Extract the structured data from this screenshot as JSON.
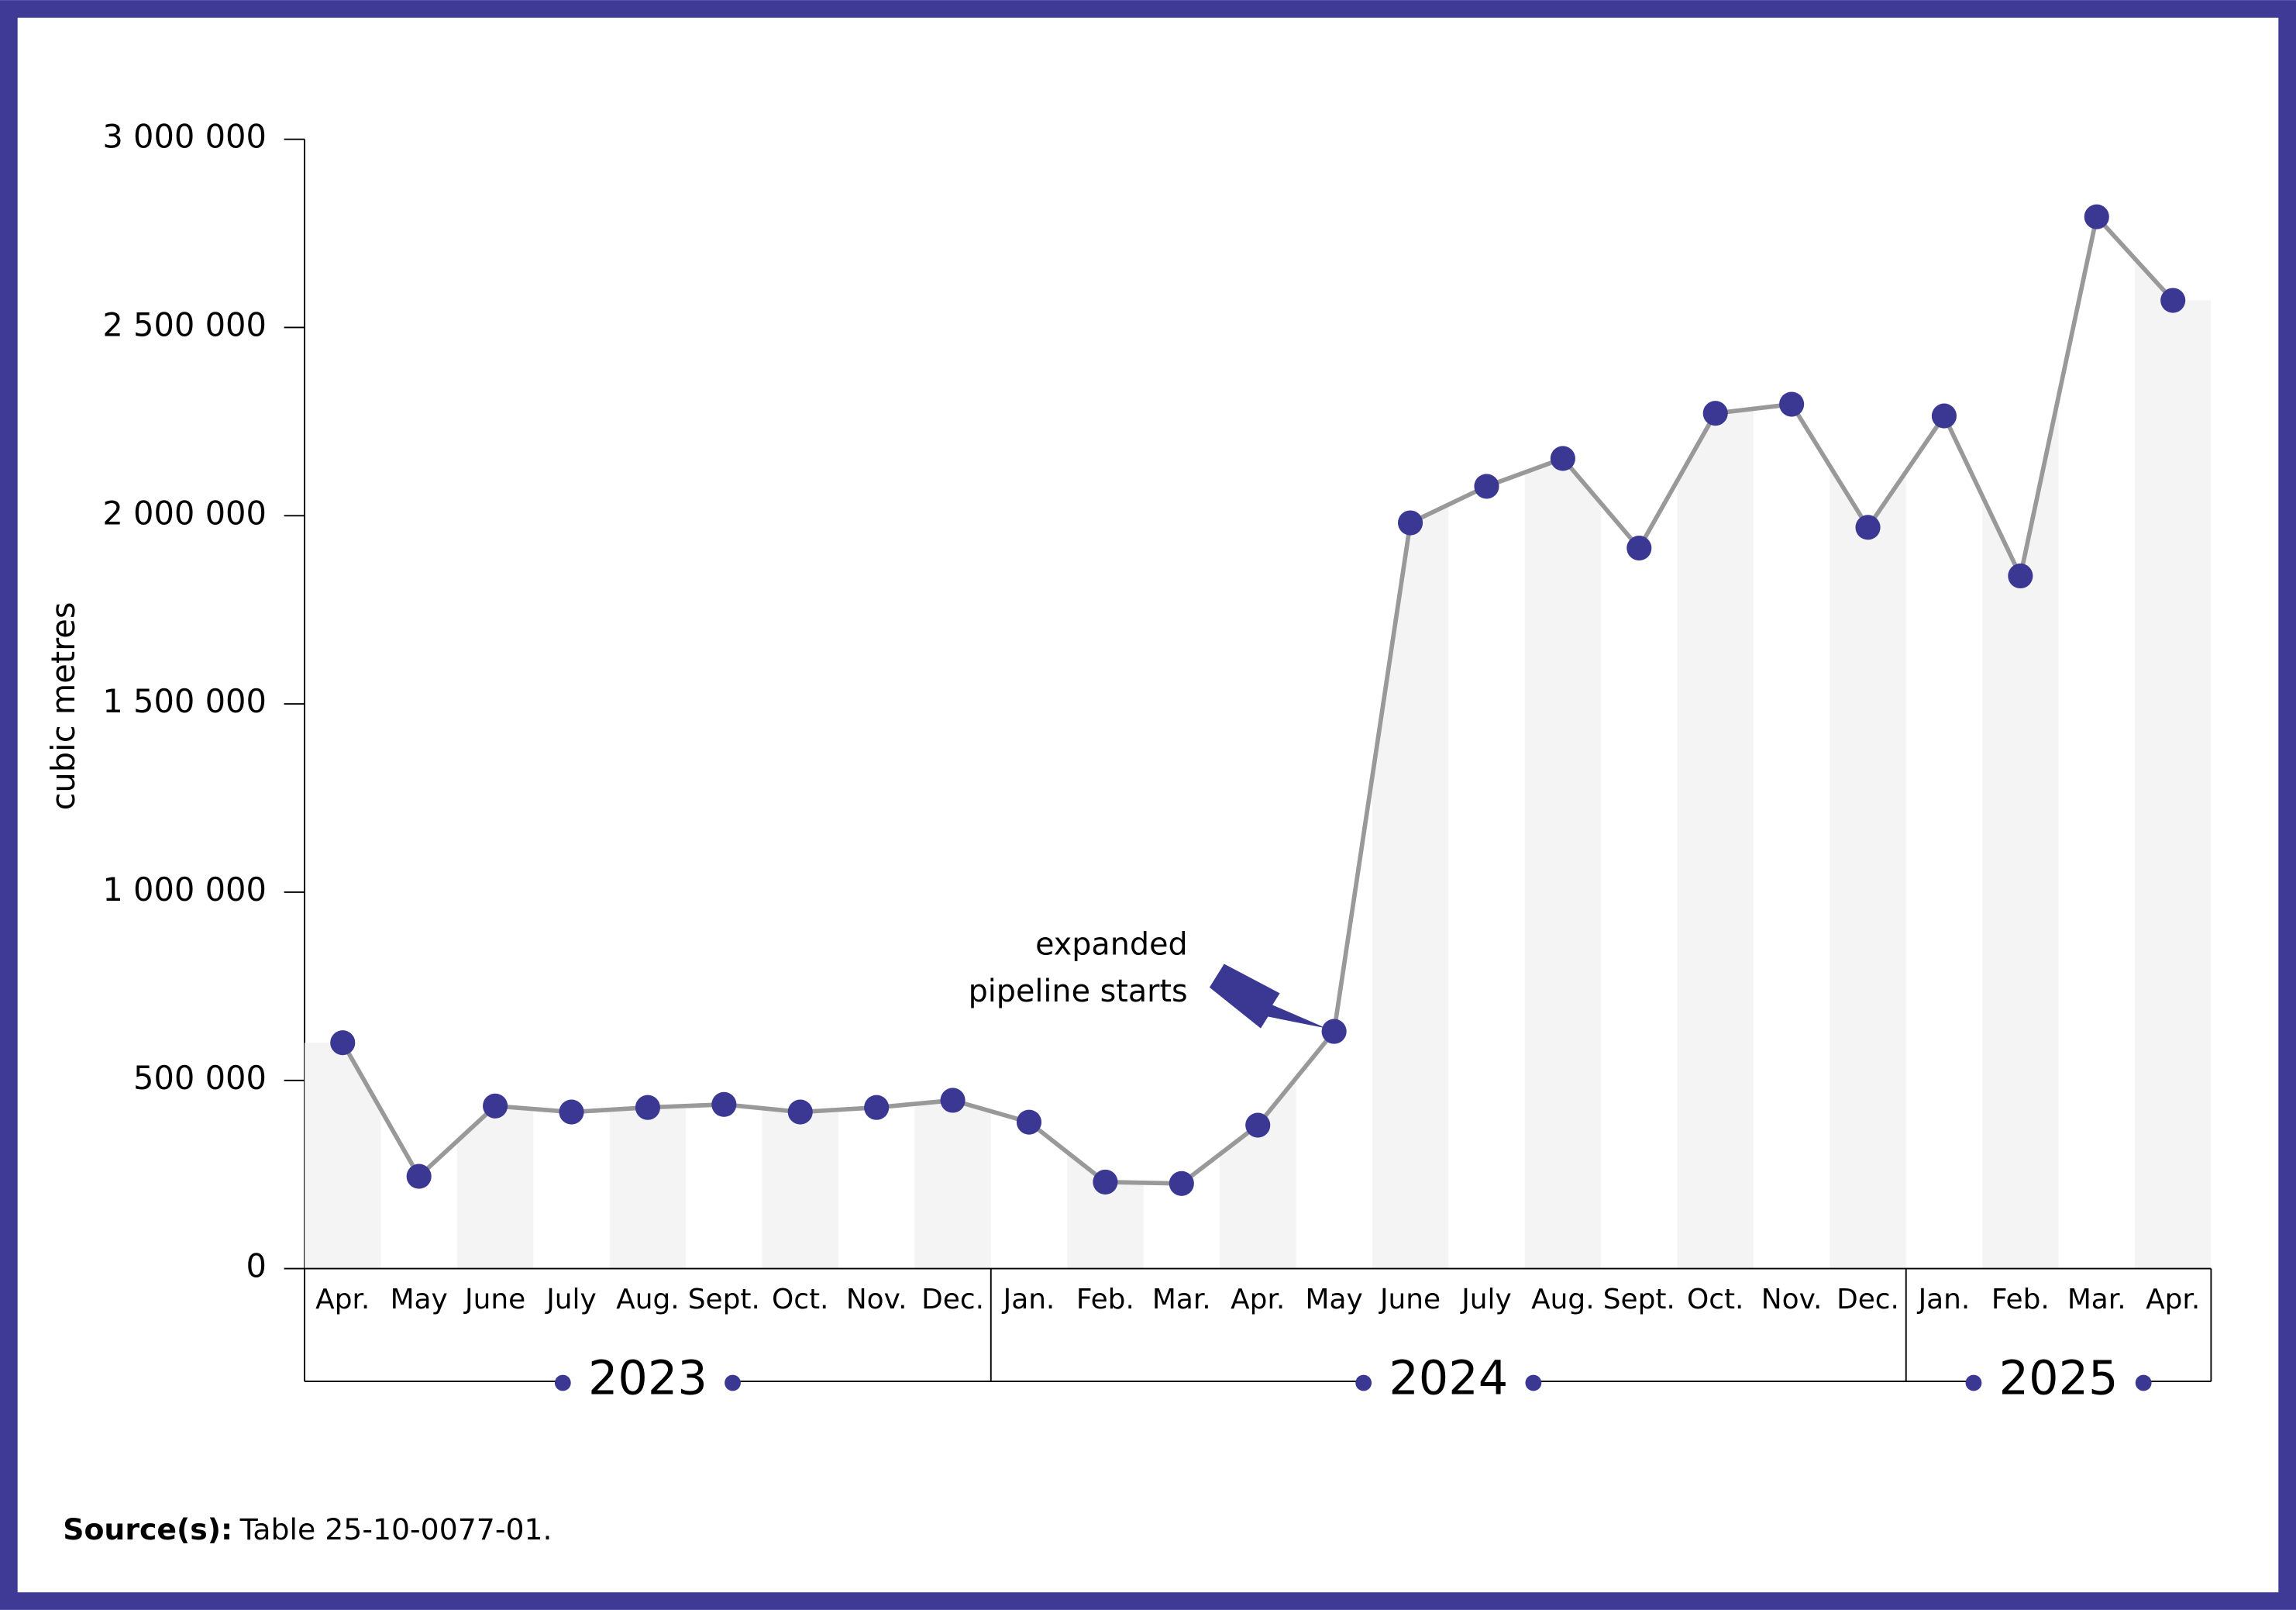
{
  "chart_data": {
    "type": "line",
    "y_label": "cubic metres",
    "categories": [
      "Apr.",
      "May",
      "June",
      "July",
      "Aug.",
      "Sept.",
      "Oct.",
      "Nov.",
      "Dec.",
      "Jan.",
      "Feb.",
      "Mar.",
      "Apr.",
      "May",
      "June",
      "July",
      "Aug.",
      "Sept.",
      "Oct.",
      "Nov.",
      "Dec.",
      "Jan.",
      "Feb.",
      "Mar.",
      "Apr."
    ],
    "x_groups": [
      {
        "label": "2023",
        "span": 9
      },
      {
        "label": "2024",
        "span": 12
      },
      {
        "label": "2025",
        "span": 4
      }
    ],
    "series": [
      {
        "color": "#3b3893",
        "line_color": "#999999",
        "values": [
          600000,
          245000,
          432000,
          416000,
          428000,
          436000,
          416000,
          428000,
          447000,
          389000,
          230000,
          226000,
          381000,
          630000,
          1981000,
          2078000,
          2152000,
          1914000,
          2272000,
          2296000,
          1969000,
          2265000,
          1840000,
          2794000,
          2572000
        ]
      }
    ],
    "ylim": [
      0,
      3000000
    ],
    "yticks": [
      0,
      {
        "value": 500000,
        "label": "500 000"
      },
      {
        "value": 1000000,
        "label": "1 000 000"
      },
      {
        "value": 1500000,
        "label": "1 500 000"
      },
      {
        "value": 2000000,
        "label": "2 000 000"
      },
      {
        "value": 2500000,
        "label": "2 500 000"
      },
      {
        "value": 3000000,
        "label": "3 000 000"
      }
    ],
    "annotation": {
      "lines": [
        "expanded",
        "pipeline starts"
      ],
      "index": 13
    },
    "source_label": "Source(s):",
    "source_text": "Table 25-10-0077-01."
  }
}
